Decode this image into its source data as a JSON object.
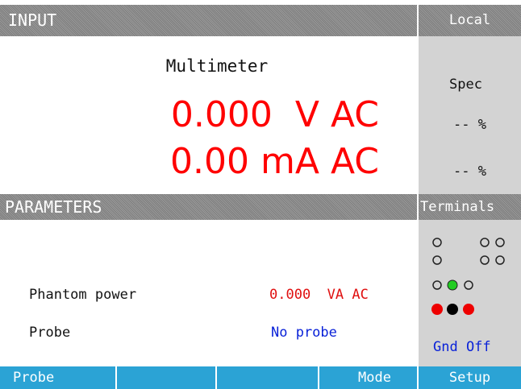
{
  "header": {
    "title": "INPUT",
    "status": "Local"
  },
  "input": {
    "mode": "Multimeter",
    "readings": [
      "0.000  V AC",
      "0.00 mA AC"
    ],
    "spec_label": "Spec",
    "spec_values": [
      "-- %",
      "-- %"
    ]
  },
  "parameters": {
    "title": "PARAMETERS",
    "rows": [
      {
        "label": "Phantom power",
        "value": "0.000  VA AC"
      },
      {
        "label": "Probe",
        "value": "No probe"
      }
    ]
  },
  "terminals": {
    "title": "Terminals",
    "status": "Gnd Off"
  },
  "softkeys": [
    "Probe",
    "Mode",
    "Setup"
  ]
}
